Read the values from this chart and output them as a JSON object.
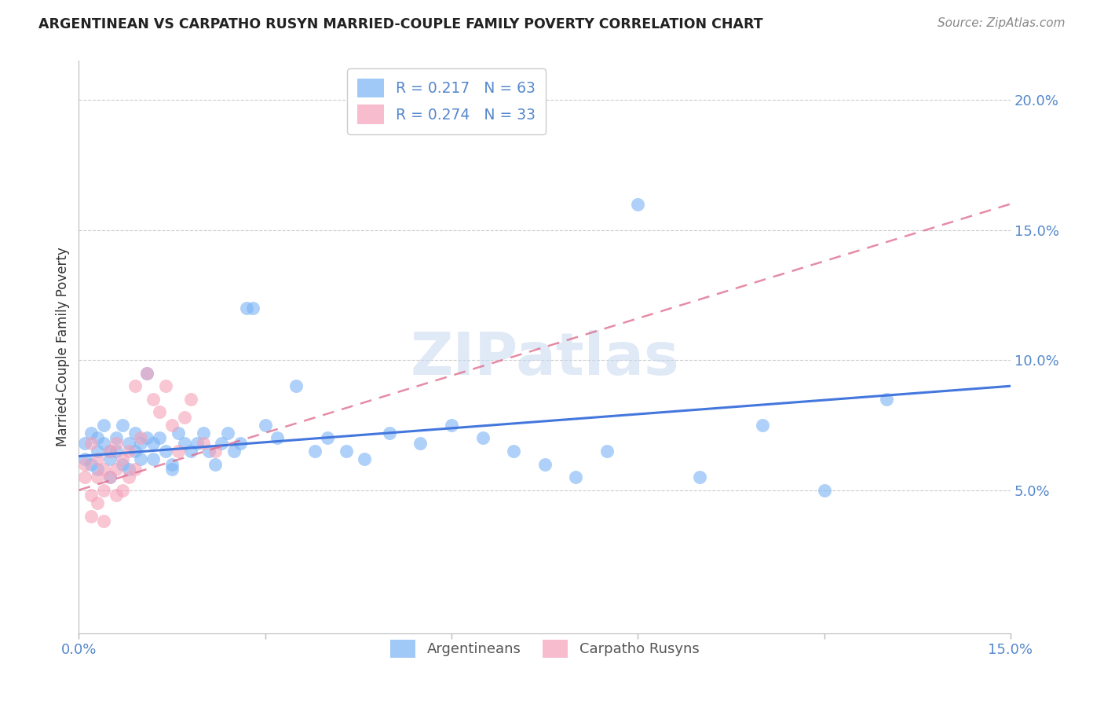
{
  "title": "ARGENTINEAN VS CARPATHO RUSYN MARRIED-COUPLE FAMILY POVERTY CORRELATION CHART",
  "source": "Source: ZipAtlas.com",
  "ylabel": "Married-Couple Family Poverty",
  "watermark": "ZIPatlas",
  "xlim": [
    0.0,
    0.15
  ],
  "ylim": [
    -0.005,
    0.215
  ],
  "xtick_vals": [
    0.0,
    0.15
  ],
  "xtick_labels": [
    "0.0%",
    "15.0%"
  ],
  "ytick_right_vals": [
    0.05,
    0.1,
    0.15,
    0.2
  ],
  "ytick_right_labels": [
    "5.0%",
    "10.0%",
    "15.0%",
    "20.0%"
  ],
  "background_color": "#ffffff",
  "grid_color": "#cccccc",
  "blue_scatter_color": "#7ab3f5",
  "pink_scatter_color": "#f5a0b8",
  "blue_line_color": "#4477dd",
  "pink_line_color": "#dd6688",
  "axis_label_color": "#5588cc",
  "title_color": "#222222",
  "source_color": "#888888",
  "R_argentinean": 0.217,
  "N_argentinean": 63,
  "R_carpatho": 0.274,
  "N_carpatho": 33,
  "argentinean_x": [
    0.001,
    0.001,
    0.002,
    0.002,
    0.003,
    0.003,
    0.003,
    0.004,
    0.004,
    0.005,
    0.005,
    0.005,
    0.006,
    0.006,
    0.007,
    0.007,
    0.008,
    0.008,
    0.009,
    0.009,
    0.01,
    0.01,
    0.011,
    0.011,
    0.012,
    0.012,
    0.013,
    0.014,
    0.015,
    0.015,
    0.016,
    0.017,
    0.018,
    0.019,
    0.02,
    0.021,
    0.022,
    0.023,
    0.024,
    0.025,
    0.026,
    0.027,
    0.028,
    0.03,
    0.032,
    0.035,
    0.038,
    0.04,
    0.043,
    0.046,
    0.05,
    0.055,
    0.06,
    0.065,
    0.07,
    0.075,
    0.08,
    0.085,
    0.09,
    0.1,
    0.11,
    0.12,
    0.13
  ],
  "argentinean_y": [
    0.068,
    0.062,
    0.072,
    0.06,
    0.07,
    0.065,
    0.058,
    0.075,
    0.068,
    0.065,
    0.062,
    0.055,
    0.07,
    0.065,
    0.075,
    0.06,
    0.068,
    0.058,
    0.072,
    0.065,
    0.068,
    0.062,
    0.095,
    0.07,
    0.062,
    0.068,
    0.07,
    0.065,
    0.06,
    0.058,
    0.072,
    0.068,
    0.065,
    0.068,
    0.072,
    0.065,
    0.06,
    0.068,
    0.072,
    0.065,
    0.068,
    0.12,
    0.12,
    0.075,
    0.07,
    0.09,
    0.065,
    0.07,
    0.065,
    0.062,
    0.072,
    0.068,
    0.075,
    0.07,
    0.065,
    0.06,
    0.055,
    0.065,
    0.16,
    0.055,
    0.075,
    0.05,
    0.085
  ],
  "carpatho_x": [
    0.001,
    0.001,
    0.002,
    0.002,
    0.002,
    0.003,
    0.003,
    0.003,
    0.004,
    0.004,
    0.004,
    0.005,
    0.005,
    0.006,
    0.006,
    0.006,
    0.007,
    0.007,
    0.008,
    0.008,
    0.009,
    0.009,
    0.01,
    0.011,
    0.012,
    0.013,
    0.014,
    0.015,
    0.016,
    0.017,
    0.018,
    0.02,
    0.022
  ],
  "carpatho_y": [
    0.06,
    0.055,
    0.068,
    0.048,
    0.04,
    0.062,
    0.055,
    0.045,
    0.058,
    0.05,
    0.038,
    0.065,
    0.055,
    0.068,
    0.058,
    0.048,
    0.062,
    0.05,
    0.065,
    0.055,
    0.09,
    0.058,
    0.07,
    0.095,
    0.085,
    0.08,
    0.09,
    0.075,
    0.065,
    0.078,
    0.085,
    0.068,
    0.065
  ],
  "blue_trend_x0": 0.0,
  "blue_trend_x1": 0.15,
  "blue_trend_y0": 0.063,
  "blue_trend_y1": 0.09,
  "pink_trend_x0": 0.0,
  "pink_trend_x1": 0.15,
  "pink_trend_y0": 0.05,
  "pink_trend_y1": 0.16
}
